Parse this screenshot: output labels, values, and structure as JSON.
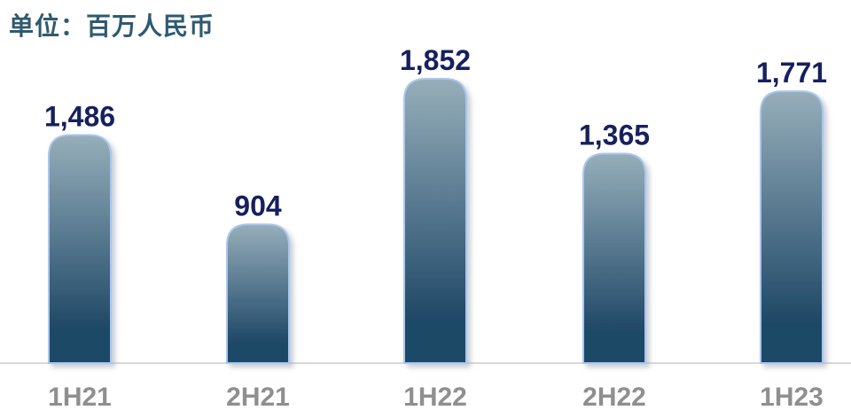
{
  "unit_label": "单位：百万人民币",
  "chart_data": {
    "type": "bar",
    "categories": [
      "1H21",
      "2H21",
      "1H22",
      "2H22",
      "1H23"
    ],
    "values": [
      1486,
      904,
      1852,
      1365,
      1771
    ],
    "value_labels": [
      "1,486",
      "904",
      "1,852",
      "1,365",
      "1,771"
    ],
    "title": "",
    "xlabel": "",
    "ylabel": "",
    "ylim": [
      0,
      2000
    ],
    "grid": false,
    "colors": {
      "bar_top": "#96aeb9",
      "bar_bottom": "#1f4866",
      "bar_stroke": "#a9c6f0",
      "value_text": "#17205e",
      "category_text": "#8f8f8f",
      "baseline": "#d9d9d9"
    }
  }
}
